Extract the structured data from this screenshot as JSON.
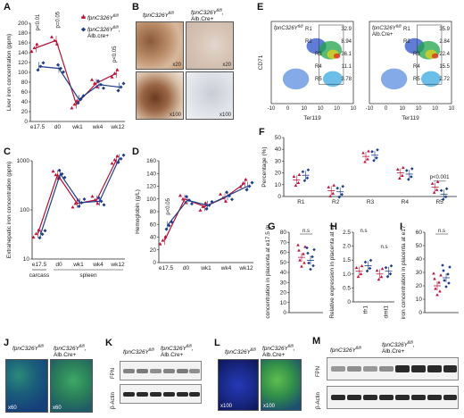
{
  "figure": {
    "panels": [
      "A",
      "B",
      "C",
      "D",
      "E",
      "F",
      "G",
      "H",
      "I",
      "J",
      "K",
      "L",
      "M"
    ]
  },
  "legend": {
    "mut": "fpnC326Y",
    "mut_sup": "fl/fl",
    "alb": "fpnC326Y",
    "alb_sup": "fl/fl",
    "alb_suffix": ",",
    "alb_line2": "Alb.cre+"
  },
  "colors": {
    "mutant": "#c0143c",
    "control": "#1f3d8a",
    "line": "#b01035"
  },
  "panel_a": {
    "chart_data": {
      "type": "line",
      "ylabel": "Liver iron concentration (ppm)",
      "categories": [
        "e17.5",
        "d0",
        "wk1",
        "wk4",
        "wk12"
      ],
      "ylim": [
        0,
        200
      ],
      "yticks": [
        "0",
        "20",
        "40",
        "60",
        "80",
        "100",
        "120",
        "140",
        "160",
        "180",
        "200"
      ],
      "series": [
        {
          "name": "fpnC326Y fl/fl",
          "values": [
            150,
            165,
            35,
            78,
            98
          ]
        },
        {
          "name": "fpnC326Y fl/fl, Alb.cre+",
          "values": [
            112,
            108,
            45,
            75,
            70
          ]
        }
      ],
      "annotations": [
        "p<0.01",
        "p=0.05",
        "p<0.05"
      ]
    }
  },
  "panel_b": {
    "labels": [
      "fpnC326Y",
      "fpnC326Y"
    ],
    "sup": "fl/fl",
    "alb": "Alb.Cre+",
    "mags": [
      "x20",
      "x20",
      "x100",
      "x100"
    ]
  },
  "panel_c": {
    "chart_data": {
      "type": "line",
      "ylabel": "Extrahepatic iron concentration (ppm)",
      "categories": [
        "e17.5",
        "d0",
        "wk1",
        "wk4",
        "wk12"
      ],
      "ylim": [
        10,
        1000
      ],
      "scale": "log",
      "yticks": [
        "10",
        "100",
        "1000"
      ],
      "groups": [
        {
          "label": "carcass",
          "span": [
            "e17.5"
          ]
        },
        {
          "label": "spleen",
          "span": [
            "d0",
            "wk1",
            "wk4",
            "wk12"
          ]
        }
      ],
      "series": [
        {
          "name": "fpnC326Y fl/fl",
          "values": [
            33,
            520,
            135,
            160,
            1050
          ]
        },
        {
          "name": "fpnC326Y fl/fl, Alb.cre+",
          "values": [
            32,
            540,
            140,
            150,
            1100
          ]
        }
      ]
    }
  },
  "panel_d": {
    "chart_data": {
      "type": "line",
      "ylabel": "Hemoglobin (g/L)",
      "categories": [
        "e17.5",
        "d0",
        "wk1",
        "wk4",
        "wk12"
      ],
      "ylim": [
        0,
        160
      ],
      "yticks": [
        "0",
        "20",
        "40",
        "60",
        "80",
        "100",
        "120",
        "140",
        "160"
      ],
      "series": [
        {
          "name": "fpnC326Y fl/fl",
          "values": [
            35,
            100,
            88,
            102,
            125
          ]
        },
        {
          "name": "fpnC326Y fl/fl, Alb.cre+",
          "values": [
            58,
            98,
            90,
            105,
            120
          ]
        }
      ],
      "annotations": [
        "p<0.05"
      ]
    }
  },
  "panel_e": {
    "xlabel": "Ter119",
    "ylabel": "CD71",
    "left_label": "fpnC326Y",
    "right_label": "fpnC326Y",
    "sup": "fl/fl",
    "alb": "Alb.Cre+",
    "left_gates": [
      "R1",
      "R2",
      "R3",
      "R4",
      "R5"
    ],
    "left_vals": [
      "32.9",
      "8.94",
      "36.1",
      "11.1",
      "3.78"
    ],
    "right_gates": [
      "R1",
      "R2",
      "R3",
      "R4",
      "R5"
    ],
    "right_vals": [
      "35.9",
      "2.84",
      "22.4",
      "15.5",
      "2.72"
    ],
    "ticks": [
      "-10",
      "0",
      "10",
      "10",
      "10",
      "10"
    ]
  },
  "panel_f": {
    "chart_data": {
      "type": "scatter",
      "ylabel": "Percentage (%)",
      "categories": [
        "R1",
        "R2",
        "R3",
        "R4",
        "R5"
      ],
      "ylim": [
        0,
        50
      ],
      "yticks": [
        "0",
        "10",
        "20",
        "30",
        "40",
        "50"
      ],
      "series": [
        {
          "name": "fpnC326Y fl/fl",
          "values": [
            14,
            5,
            34,
            20,
            8
          ]
        },
        {
          "name": "fpnC326Y fl/fl, Alb.cre+",
          "values": [
            18,
            4,
            35,
            19,
            2
          ]
        }
      ],
      "annotations": [
        "p<0.001"
      ]
    }
  },
  "panel_g": {
    "chart_data": {
      "type": "scatter",
      "ylabel": "Iron concentration in placenta at e17.5 (ppm)",
      "ylim": [
        0,
        80
      ],
      "yticks": [
        "0",
        "10",
        "20",
        "30",
        "40",
        "50",
        "60",
        "70",
        "80"
      ],
      "series": [
        {
          "name": "fpnC326Y fl/fl",
          "values": [
            55
          ]
        },
        {
          "name": "fpnC326Y fl/fl, Alb.cre+",
          "values": [
            52
          ]
        }
      ],
      "annotations": [
        "n.s"
      ]
    }
  },
  "panel_h": {
    "chart_data": {
      "type": "scatter",
      "ylabel": "Relative expression in placenta at e17.5",
      "categories": [
        "tfr1",
        "dmt1"
      ],
      "ylim": [
        0,
        2.5
      ],
      "yticks": [
        "0",
        "0.5",
        "1.0",
        "1.5",
        "2.0",
        "2.5"
      ],
      "series": [
        {
          "name": "fpnC326Y fl/fl",
          "values": [
            1.1,
            1.0
          ]
        },
        {
          "name": "fpnC326Y fl/fl, Alb.cre+",
          "values": [
            1.3,
            1.1
          ]
        }
      ],
      "annotations": [
        "n.s",
        "n.s"
      ]
    }
  },
  "panel_i": {
    "chart_data": {
      "type": "scatter",
      "ylabel": "Serum iron concentration in placenta at e17.5 (µM)",
      "ylim": [
        0,
        60
      ],
      "yticks": [
        "0",
        "10",
        "20",
        "30",
        "40",
        "50",
        "60"
      ],
      "series": [
        {
          "name": "fpnC326Y fl/fl",
          "values": [
            20
          ]
        },
        {
          "name": "fpnC326Y fl/fl, Alb.cre+",
          "values": [
            26
          ]
        }
      ],
      "annotations": [
        "n.s"
      ]
    }
  },
  "panel_j": {
    "labels": [
      "fpnC326Y",
      "fpnC326Y"
    ],
    "sup": "fl/fl",
    "alb": "Alb.Cre+",
    "mags": [
      "x60",
      "x60"
    ]
  },
  "panel_k": {
    "labels": [
      "fpnC326Y",
      "fpnC326Y"
    ],
    "sup": "fl/fl",
    "alb": "Alb.Cre+",
    "rows": [
      "FPN",
      "β-Actin"
    ]
  },
  "panel_l": {
    "labels": [
      "fpnC326Y",
      "fpnC326Y"
    ],
    "sup": "fl/fl",
    "alb": "Alb.Cre+",
    "mags": [
      "x100",
      "x100"
    ]
  },
  "panel_m": {
    "labels": [
      "fpnC326Y",
      "fpnC326Y"
    ],
    "sup": "fl/fl",
    "alb": "Alb.Cre+",
    "rows": [
      "FPN",
      "β-Actin"
    ]
  }
}
